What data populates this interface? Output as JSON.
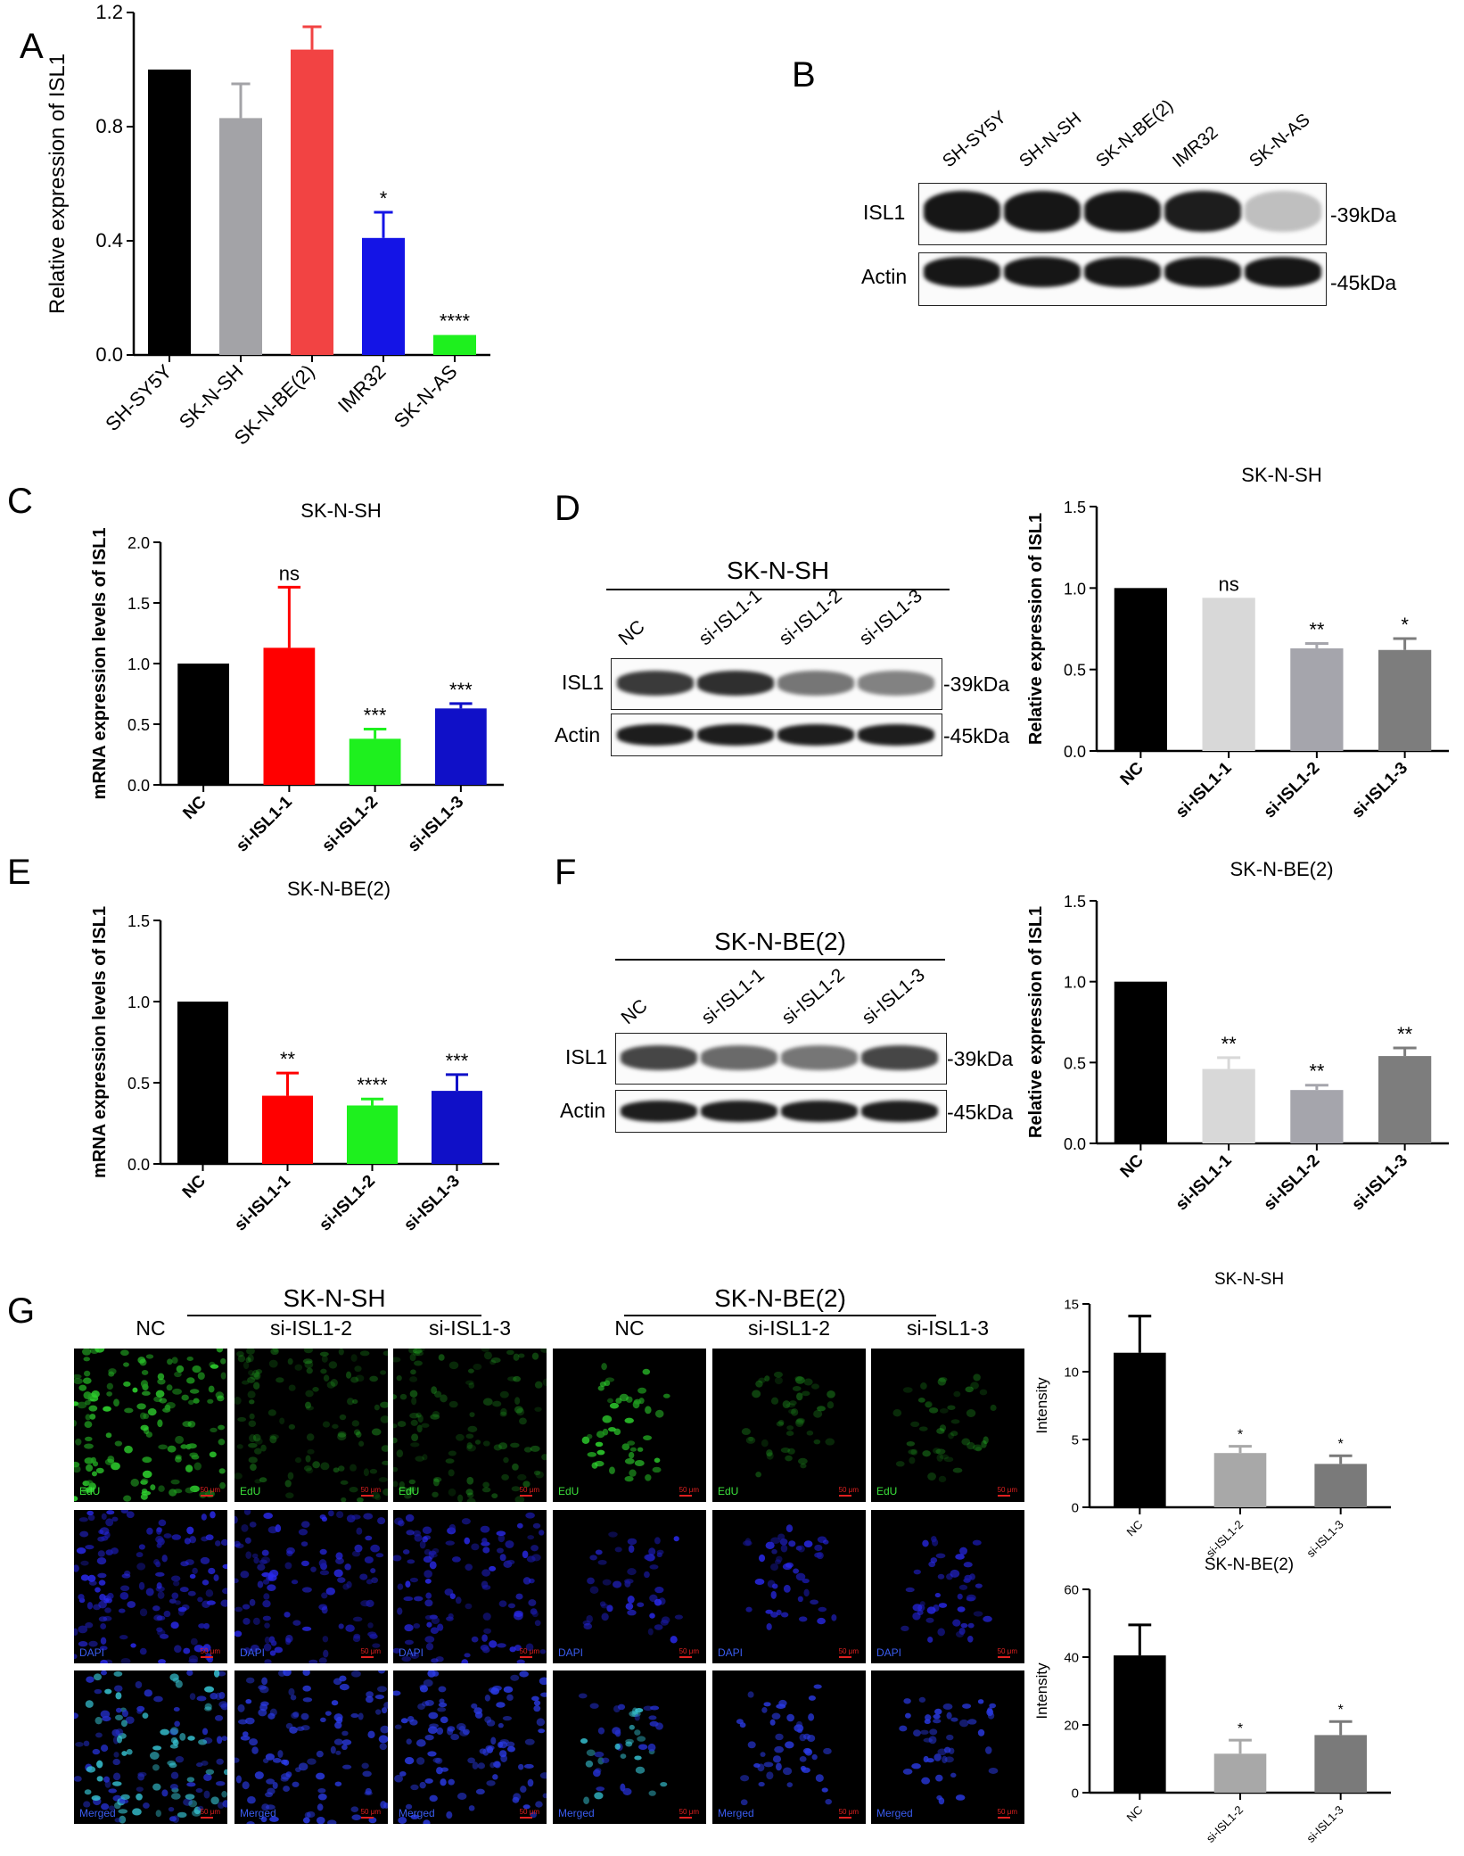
{
  "panels": {
    "A": "A",
    "B": "B",
    "C": "C",
    "D": "D",
    "E": "E",
    "F": "F",
    "G": "G"
  },
  "chart_data": [
    {
      "id": "A",
      "type": "bar",
      "title": "",
      "xlabel": "",
      "ylabel": "Relative expression of ISL1",
      "categories": [
        "SH-SY5Y",
        "SK-N-SH",
        "SK-N-BE(2)",
        "IMR32",
        "SK-N-AS"
      ],
      "values": [
        1.0,
        0.83,
        1.07,
        0.41,
        0.07
      ],
      "errors": [
        0,
        0.12,
        0.08,
        0.09,
        0
      ],
      "significance": [
        "",
        "",
        "",
        "*",
        "****"
      ],
      "colors": [
        "#000000",
        "#a3a3a7",
        "#f24343",
        "#1414e6",
        "#1ef01e"
      ],
      "ylim": [
        0,
        1.2
      ],
      "yticks": [
        "0.0",
        "0.4",
        "0.8",
        "1.2"
      ],
      "rotate": 45
    },
    {
      "id": "C",
      "type": "bar",
      "title": "SK-N-SH",
      "xlabel": "",
      "ylabel": "mRNA expression levels of ISL1",
      "categories": [
        "NC",
        "si-ISL1-1",
        "si-ISL1-2",
        "si-ISL1-3"
      ],
      "values": [
        1.0,
        1.13,
        0.38,
        0.63
      ],
      "errors": [
        0,
        0.5,
        0.08,
        0.04
      ],
      "significance": [
        "",
        "ns",
        "***",
        "***"
      ],
      "colors": [
        "#000000",
        "#ff0000",
        "#1ef01e",
        "#1010c8"
      ],
      "ylim": [
        0,
        2.0
      ],
      "yticks": [
        "0.0",
        "0.5",
        "1.0",
        "1.5",
        "2.0"
      ],
      "bold": true,
      "rotate": 45
    },
    {
      "id": "D",
      "type": "bar",
      "title": "SK-N-SH",
      "xlabel": "",
      "ylabel": "Relative expression  of ISL1",
      "categories": [
        "NC",
        "si-ISL1-1",
        "si-ISL1-2",
        "si-ISL1-3"
      ],
      "values": [
        1.0,
        0.94,
        0.63,
        0.62
      ],
      "errors": [
        0,
        0,
        0.03,
        0.07
      ],
      "significance": [
        "",
        "ns",
        "**",
        "*"
      ],
      "colors": [
        "#000000",
        "#d8d8d8",
        "#a5a5ac",
        "#7d7d7d"
      ],
      "ylim": [
        0,
        1.5
      ],
      "yticks": [
        "0.0",
        "0.5",
        "1.0",
        "1.5"
      ],
      "bold": true,
      "rotate": 45
    },
    {
      "id": "E",
      "type": "bar",
      "title": "SK-N-BE(2)",
      "xlabel": "",
      "ylabel": "mRNA expression levels of ISL1",
      "categories": [
        "NC",
        "si-ISL1-1",
        "si-ISL1-2",
        "si-ISL1-3"
      ],
      "values": [
        1.0,
        0.42,
        0.36,
        0.45
      ],
      "errors": [
        0,
        0.14,
        0.04,
        0.1
      ],
      "significance": [
        "",
        "**",
        "****",
        "***"
      ],
      "colors": [
        "#000000",
        "#ff0000",
        "#1ef01e",
        "#1010c8"
      ],
      "ylim": [
        0,
        1.5
      ],
      "yticks": [
        "0.0",
        "0.5",
        "1.0",
        "1.5"
      ],
      "bold": true,
      "rotate": 45
    },
    {
      "id": "F",
      "type": "bar",
      "title": "SK-N-BE(2)",
      "xlabel": "",
      "ylabel": "Relative expression  of ISL1",
      "categories": [
        "NC",
        "si-ISL1-1",
        "si-ISL1-2",
        "si-ISL1-3"
      ],
      "values": [
        1.0,
        0.46,
        0.33,
        0.54
      ],
      "errors": [
        0,
        0.07,
        0.03,
        0.05
      ],
      "significance": [
        "",
        "**",
        "**",
        "**"
      ],
      "colors": [
        "#000000",
        "#d8d8d8",
        "#a5a5ac",
        "#7d7d7d"
      ],
      "ylim": [
        0,
        1.5
      ],
      "yticks": [
        "0.0",
        "0.5",
        "1.0",
        "1.5"
      ],
      "bold": true,
      "rotate": 45
    },
    {
      "id": "G1",
      "type": "bar",
      "title": "SK-N-SH",
      "xlabel": "",
      "ylabel": "Intensity",
      "categories": [
        "NC",
        "si-ISL1-2",
        "si-ISL1-3"
      ],
      "values": [
        11.4,
        4.0,
        3.2
      ],
      "errors": [
        2.7,
        0.5,
        0.6
      ],
      "significance": [
        "",
        "*",
        "*"
      ],
      "colors": [
        "#000000",
        "#a8a8a8",
        "#7a7a7a"
      ],
      "ylim": [
        0,
        15
      ],
      "yticks": [
        "0",
        "5",
        "10",
        "15"
      ],
      "rotate": 45,
      "small": true
    },
    {
      "id": "G2",
      "type": "bar",
      "title": "SK-N-BE(2)",
      "xlabel": "",
      "ylabel": "Intensity",
      "categories": [
        "NC",
        "si-ISL1-2",
        "si-ISL1-3"
      ],
      "values": [
        40.5,
        11.5,
        17.0
      ],
      "errors": [
        9.0,
        4.0,
        4.0
      ],
      "significance": [
        "",
        "*",
        "*"
      ],
      "colors": [
        "#000000",
        "#a8a8a8",
        "#7a7a7a"
      ],
      "ylim": [
        0,
        60
      ],
      "yticks": [
        "0",
        "20",
        "40",
        "60"
      ],
      "rotate": 45,
      "small": true
    }
  ],
  "blots": {
    "B": {
      "lanes": [
        "SH-SY5Y",
        "SH-N-SH",
        "SK-N-BE(2)",
        "IMR32",
        "SK-N-AS"
      ],
      "rows": [
        {
          "label": "ISL1",
          "kda": "-39kDa"
        },
        {
          "label": "Actin",
          "kda": "-45kDa"
        }
      ]
    },
    "D": {
      "header": "SK-N-SH",
      "lanes": [
        "NC",
        "si-ISL1-1",
        "si-ISL1-2",
        "si-ISL1-3"
      ],
      "rows": [
        {
          "label": "ISL1",
          "kda": "-39kDa"
        },
        {
          "label": "Actin",
          "kda": "-45kDa"
        }
      ]
    },
    "F": {
      "header": "SK-N-BE(2)",
      "lanes": [
        "NC",
        "si-ISL1-1",
        "si-ISL1-2",
        "si-ISL1-3"
      ],
      "rows": [
        {
          "label": "ISL1",
          "kda": "-39kDa"
        },
        {
          "label": "Actin",
          "kda": "-45kDa"
        }
      ]
    }
  },
  "microscopy": {
    "groups": [
      {
        "title": "SK-N-SH",
        "columns": [
          "NC",
          "si-ISL1-2",
          "si-ISL1-3"
        ]
      },
      {
        "title": "SK-N-BE(2)",
        "columns": [
          "NC",
          "si-ISL1-2",
          "si-ISL1-3"
        ]
      }
    ],
    "rows": [
      "EdU",
      "DAPI",
      "Merged"
    ],
    "scale_bar": "50 μm"
  }
}
